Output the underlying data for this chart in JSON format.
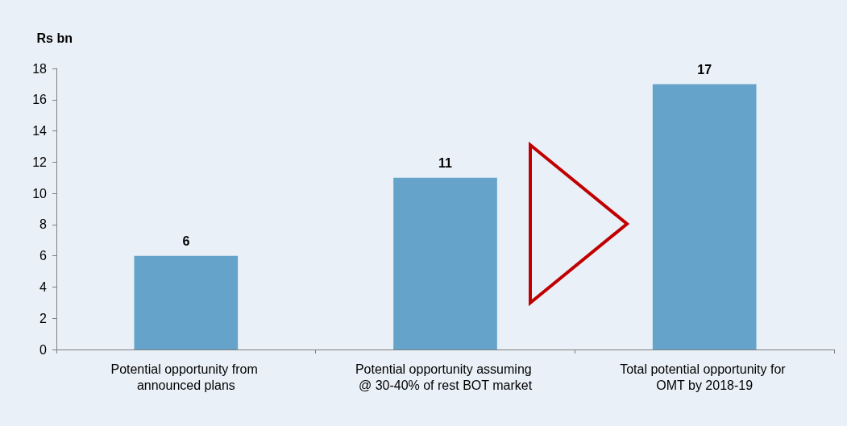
{
  "chart_data": {
    "type": "bar",
    "ylabel": "Rs bn",
    "categories": [
      "Potential opportunity from announced plans",
      "Potential opportunity assuming @ 30-40% of rest BOT market",
      "Total potential opportunity for OMT by 2018-19"
    ],
    "values": [
      6,
      11,
      17
    ],
    "color": "#66a3cb",
    "ylim": [
      0,
      18
    ],
    "yticks": [
      0,
      2,
      4,
      6,
      8,
      10,
      12,
      14,
      16,
      18
    ],
    "data_labels": true,
    "grid": false
  }
}
